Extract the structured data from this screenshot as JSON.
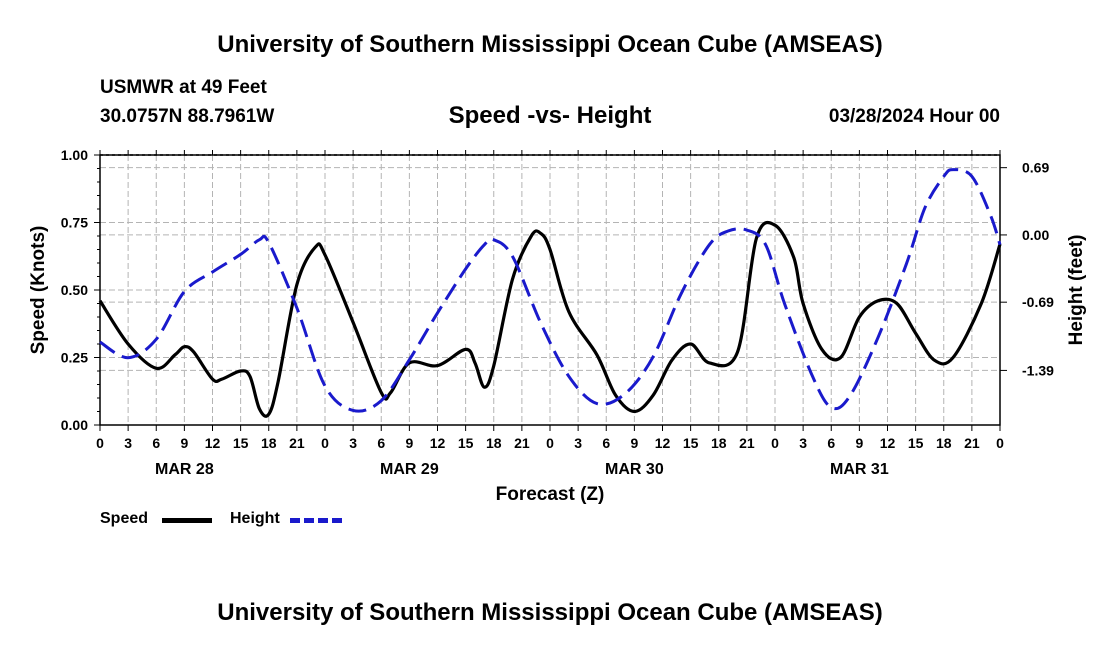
{
  "header": {
    "title": "University of Southern Mississippi Ocean Cube (AMSEAS)",
    "station": "USMWR at 49 Feet",
    "location": "30.0757N  88.7961W",
    "chart_title": "Speed -vs- Height",
    "date_label": "03/28/2024 Hour 00"
  },
  "footer": {
    "title": "University of Southern Mississippi Ocean Cube (AMSEAS)"
  },
  "legend": {
    "speed_label": "Speed",
    "height_label": "Height"
  },
  "colors": {
    "speed": "#000000",
    "height": "#1a1acc",
    "grid": "#b4b4b4"
  },
  "chart_data": {
    "type": "line",
    "title": "Speed -vs- Height",
    "xlabel": "Forecast (Z)",
    "ylabel": "Speed (Knots)",
    "y2label": "Height (feet)",
    "x_range_hours": [
      0,
      96
    ],
    "ylim": [
      0,
      1
    ],
    "y2lim": [
      -1.95,
      0.82
    ],
    "x_tick_labels": [
      "0",
      "3",
      "6",
      "9",
      "12",
      "15",
      "18",
      "21",
      "0",
      "3",
      "6",
      "9",
      "12",
      "15",
      "18",
      "21",
      "0",
      "3",
      "6",
      "9",
      "12",
      "15",
      "18",
      "21",
      "0",
      "3",
      "6",
      "9",
      "12",
      "15",
      "18",
      "21",
      "0"
    ],
    "date_labels": [
      {
        "label": "MAR 28",
        "hour": 9
      },
      {
        "label": "MAR 29",
        "hour": 33
      },
      {
        "label": "MAR 30",
        "hour": 57
      },
      {
        "label": "MAR 31",
        "hour": 81
      }
    ],
    "y_tick_labels": [
      "0.00",
      "0.25",
      "0.50",
      "0.75",
      "1.00"
    ],
    "y2_tick_labels": [
      "-1.39",
      "-0.69",
      "0.00",
      "0.69"
    ],
    "series": [
      {
        "name": "Speed",
        "axis": "left",
        "style": "solid",
        "points": [
          [
            0,
            0.46
          ],
          [
            3,
            0.3
          ],
          [
            6,
            0.21
          ],
          [
            8,
            0.26
          ],
          [
            9,
            0.29
          ],
          [
            10,
            0.27
          ],
          [
            12,
            0.17
          ],
          [
            13,
            0.17
          ],
          [
            15,
            0.2
          ],
          [
            16,
            0.18
          ],
          [
            17,
            0.06
          ],
          [
            18,
            0.04
          ],
          [
            19,
            0.16
          ],
          [
            21,
            0.52
          ],
          [
            23,
            0.66
          ],
          [
            24,
            0.63
          ],
          [
            27,
            0.38
          ],
          [
            30,
            0.12
          ],
          [
            31,
            0.12
          ],
          [
            33,
            0.23
          ],
          [
            36,
            0.22
          ],
          [
            39,
            0.28
          ],
          [
            40,
            0.23
          ],
          [
            41,
            0.14
          ],
          [
            42,
            0.22
          ],
          [
            44,
            0.54
          ],
          [
            46,
            0.7
          ],
          [
            47,
            0.71
          ],
          [
            48,
            0.65
          ],
          [
            50,
            0.42
          ],
          [
            53,
            0.26
          ],
          [
            55,
            0.11
          ],
          [
            57,
            0.05
          ],
          [
            59,
            0.11
          ],
          [
            61,
            0.24
          ],
          [
            63,
            0.3
          ],
          [
            65,
            0.23
          ],
          [
            68,
            0.27
          ],
          [
            70,
            0.69
          ],
          [
            72,
            0.74
          ],
          [
            74,
            0.62
          ],
          [
            75,
            0.45
          ],
          [
            77,
            0.28
          ],
          [
            79,
            0.25
          ],
          [
            81,
            0.4
          ],
          [
            83,
            0.46
          ],
          [
            85,
            0.45
          ],
          [
            87,
            0.34
          ],
          [
            89,
            0.24
          ],
          [
            91,
            0.25
          ],
          [
            94,
            0.45
          ],
          [
            96,
            0.67
          ]
        ]
      },
      {
        "name": "Height",
        "axis": "right",
        "style": "dashed",
        "points": [
          [
            0,
            -1.1
          ],
          [
            3,
            -1.26
          ],
          [
            6,
            -1.07
          ],
          [
            9,
            -0.58
          ],
          [
            12,
            -0.38
          ],
          [
            15,
            -0.2
          ],
          [
            17,
            -0.05
          ],
          [
            18,
            -0.08
          ],
          [
            21,
            -0.75
          ],
          [
            24,
            -1.55
          ],
          [
            27,
            -1.8
          ],
          [
            30,
            -1.7
          ],
          [
            33,
            -1.28
          ],
          [
            36,
            -0.8
          ],
          [
            39,
            -0.35
          ],
          [
            41,
            -0.1
          ],
          [
            42,
            -0.05
          ],
          [
            44,
            -0.22
          ],
          [
            47,
            -0.9
          ],
          [
            50,
            -1.45
          ],
          [
            53,
            -1.73
          ],
          [
            56,
            -1.63
          ],
          [
            59,
            -1.25
          ],
          [
            62,
            -0.6
          ],
          [
            65,
            -0.1
          ],
          [
            67,
            0.04
          ],
          [
            69,
            0.05
          ],
          [
            71,
            -0.1
          ],
          [
            73,
            -0.7
          ],
          [
            76,
            -1.45
          ],
          [
            78,
            -1.77
          ],
          [
            80,
            -1.65
          ],
          [
            83,
            -1.05
          ],
          [
            86,
            -0.3
          ],
          [
            88,
            0.28
          ],
          [
            90,
            0.6
          ],
          [
            91,
            0.67
          ],
          [
            93,
            0.6
          ],
          [
            95,
            0.2
          ],
          [
            96,
            -0.1
          ]
        ]
      }
    ]
  }
}
